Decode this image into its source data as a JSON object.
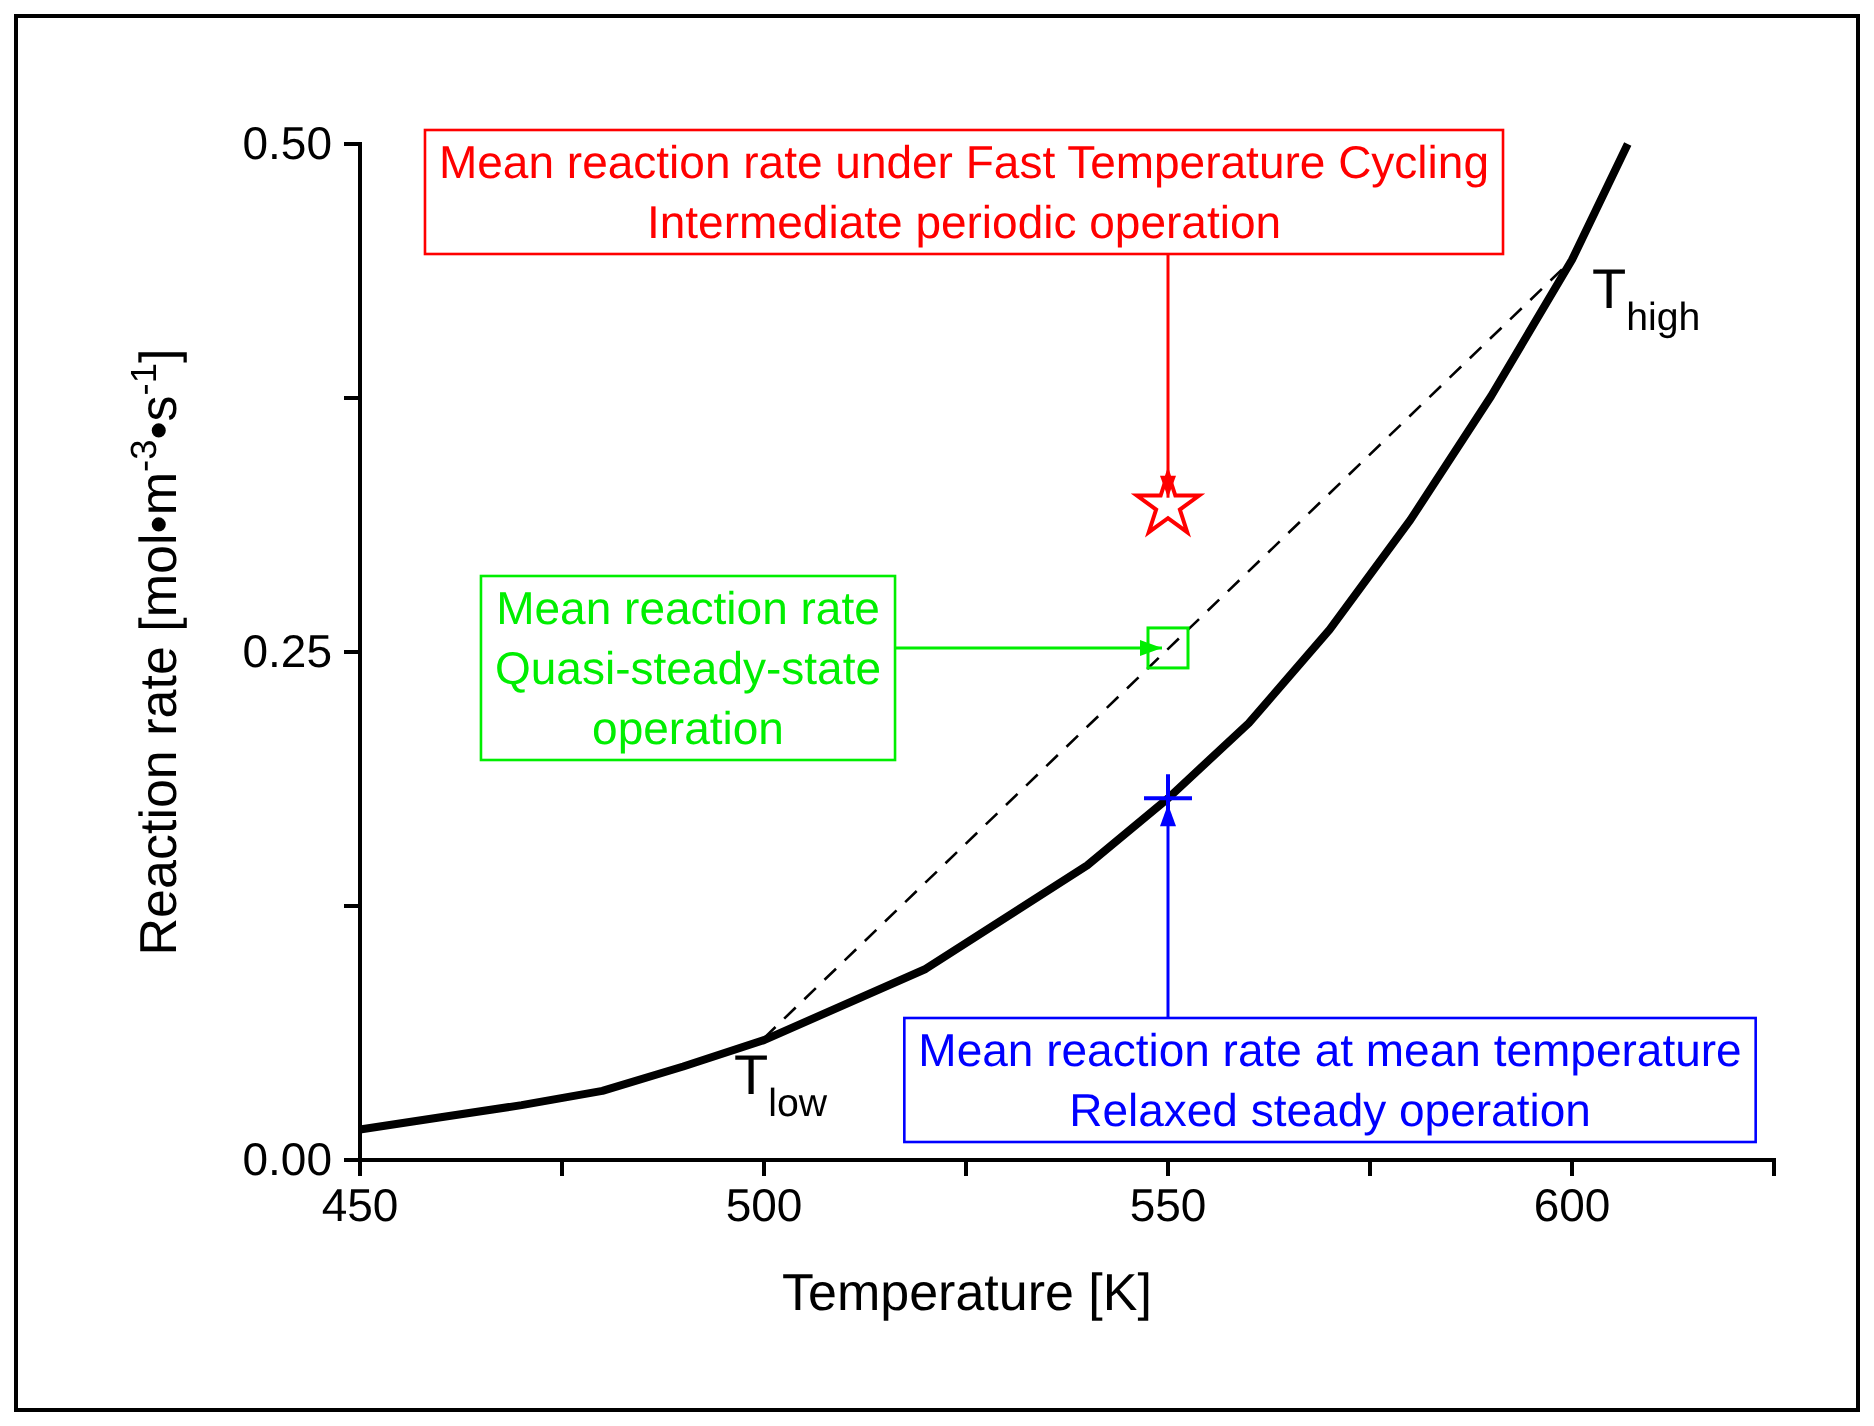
{
  "chart_data": {
    "type": "line",
    "xlabel": "Temperature [K]",
    "ylabel": "Reaction rate [mol•m$^{-3}$•s$^{-1}$]",
    "xlim": [
      450,
      625
    ],
    "xticks": [
      450,
      {
        "value": 475,
        "label": null
      },
      500,
      {
        "value": 525,
        "label": null
      },
      550,
      {
        "value": 575,
        "label": null
      },
      600,
      {
        "value": 625,
        "label": null
      }
    ],
    "ylim": [
      0,
      0.5
    ],
    "yticks": [
      {
        "value": 0,
        "label": "0.00"
      },
      {
        "value": 0.125,
        "label": null
      },
      {
        "value": 0.25,
        "label": "0.25"
      },
      {
        "value": 0.375,
        "label": null
      },
      {
        "value": 0.5,
        "label": "0.50"
      }
    ],
    "grid": false,
    "series": [
      {
        "color": "#000000",
        "line_style": "solid",
        "marker": "none",
        "x": [
          450,
          460,
          470,
          480,
          490,
          500,
          520,
          540,
          550,
          560,
          570,
          580,
          590,
          600,
          606.9
        ],
        "values": [
          0.015,
          0.021,
          0.027,
          0.034,
          0.046,
          0.059,
          0.094,
          0.145,
          0.178,
          0.215,
          0.261,
          0.315,
          0.376,
          0.443,
          0.5
        ]
      },
      {
        "color": "#000000",
        "line_style": "dashed",
        "marker": "none",
        "x": [
          500,
          600
        ],
        "values": [
          0.06,
          0.443
        ]
      },
      {
        "type": "scatter",
        "color": "#ff0000",
        "marker": "star",
        "x": [
          550
        ],
        "values": [
          0.322
        ]
      },
      {
        "type": "scatter",
        "color": "#00ee00",
        "marker": "square",
        "x": [
          550
        ],
        "values": [
          0.252
        ]
      },
      {
        "type": "scatter",
        "color": "#0000ff",
        "marker": "cross",
        "x": [
          550
        ],
        "values": [
          0.178
        ]
      }
    ],
    "annotations": [
      {
        "text": "Mean reaction rate under Fast Temperature Cycling\nIntermediate periodic operation",
        "x": 550,
        "y": 0.322
      },
      {
        "text": "Mean reaction rate\nQuasi-steady-state\noperation",
        "x": 550,
        "y": 0.252
      },
      {
        "text": "Mean reaction rate at mean temperature\nRelaxed steady operation",
        "x": 550,
        "y": 0.178
      },
      {
        "text": "T$_{low}$",
        "x": 500,
        "y": 0.06
      },
      {
        "text": "T$_{high}$",
        "x": 600,
        "y": 0.443
      }
    ]
  }
}
